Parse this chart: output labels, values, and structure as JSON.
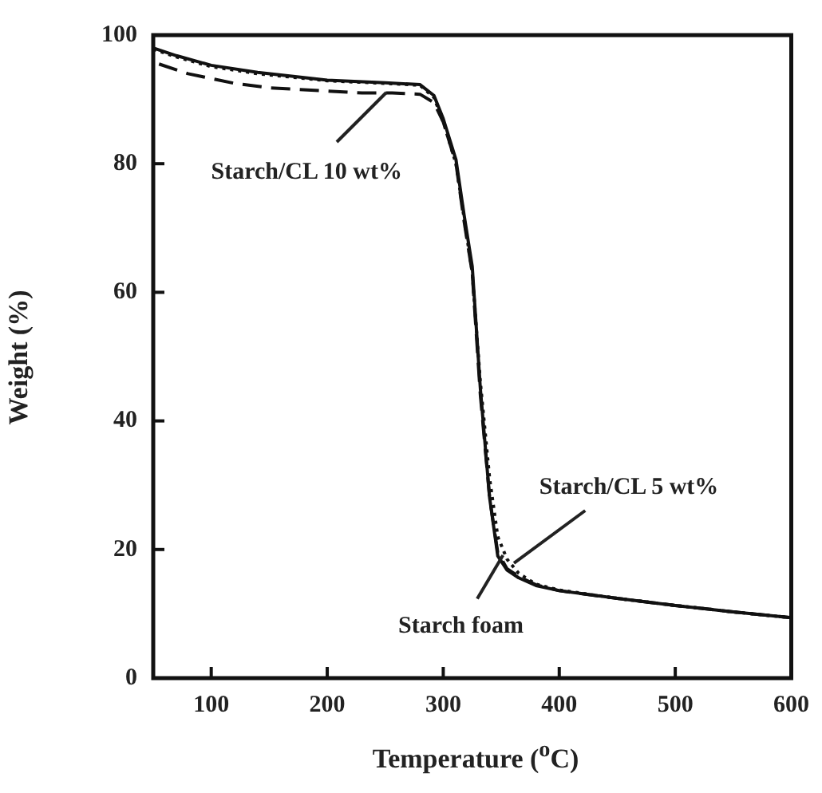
{
  "chart_data": {
    "type": "line",
    "xlabel": "Temperature ($^{o}$C)",
    "ylabel": "Weight (%)",
    "xlim": [
      50,
      600
    ],
    "xticks": [
      100,
      200,
      300,
      400,
      500,
      600
    ],
    "ylim": [
      0,
      100
    ],
    "yticks": [
      0,
      20,
      40,
      60,
      80,
      100
    ],
    "grid": false,
    "legend": false,
    "marker": "none",
    "series": [
      {
        "color": "#111111",
        "line_style": "solid",
        "x": [
          50,
          70,
          100,
          140,
          200,
          250,
          280,
          292,
          300,
          311,
          318,
          325,
          332,
          340,
          347,
          355,
          365,
          380,
          400,
          450,
          500,
          550,
          600
        ],
        "values": [
          98,
          96.8,
          95.3,
          94.2,
          93,
          92.6,
          92.3,
          90.6,
          87,
          80.6,
          72,
          64,
          45,
          28,
          19,
          16.8,
          15.6,
          14.4,
          13.6,
          12.4,
          11.3,
          10.3,
          9.4
        ]
      },
      {
        "color": "#111111",
        "line_style": "dashed",
        "x": [
          55,
          80,
          120,
          150,
          200,
          230,
          256,
          280,
          292,
          300,
          311,
          318,
          325,
          332,
          340,
          347,
          355,
          365,
          380,
          400,
          450,
          500,
          550,
          600
        ],
        "values": [
          95.5,
          94,
          92.5,
          91.8,
          91.3,
          91,
          91,
          90.8,
          89.5,
          86.5,
          80,
          71,
          63,
          44,
          28,
          19.5,
          17,
          15.8,
          14.5,
          13.6,
          12.4,
          11.3,
          10.3,
          9.4
        ]
      },
      {
        "color": "#111111",
        "line_style": "dotted",
        "x": [
          50,
          70,
          100,
          140,
          200,
          250,
          280,
          292,
          300,
          311,
          318,
          325,
          332,
          340,
          347,
          355,
          365,
          380,
          400,
          450,
          500,
          550,
          600
        ],
        "values": [
          97.8,
          96.6,
          95.1,
          94,
          92.9,
          92.5,
          92.2,
          90.3,
          86.5,
          80,
          71.5,
          63,
          46,
          31,
          22,
          18.5,
          16.3,
          14.6,
          13.7,
          12.4,
          11.3,
          10.3,
          9.4
        ]
      }
    ],
    "annotations": [
      {
        "text": "Starch/CL 10 wt%",
        "x": 251,
        "y": 91
      },
      {
        "text": "Starch/CL 5 wt%",
        "x": 361,
        "y": 18
      },
      {
        "text": "Starch foam",
        "x": 351,
        "y": 19
      }
    ]
  }
}
